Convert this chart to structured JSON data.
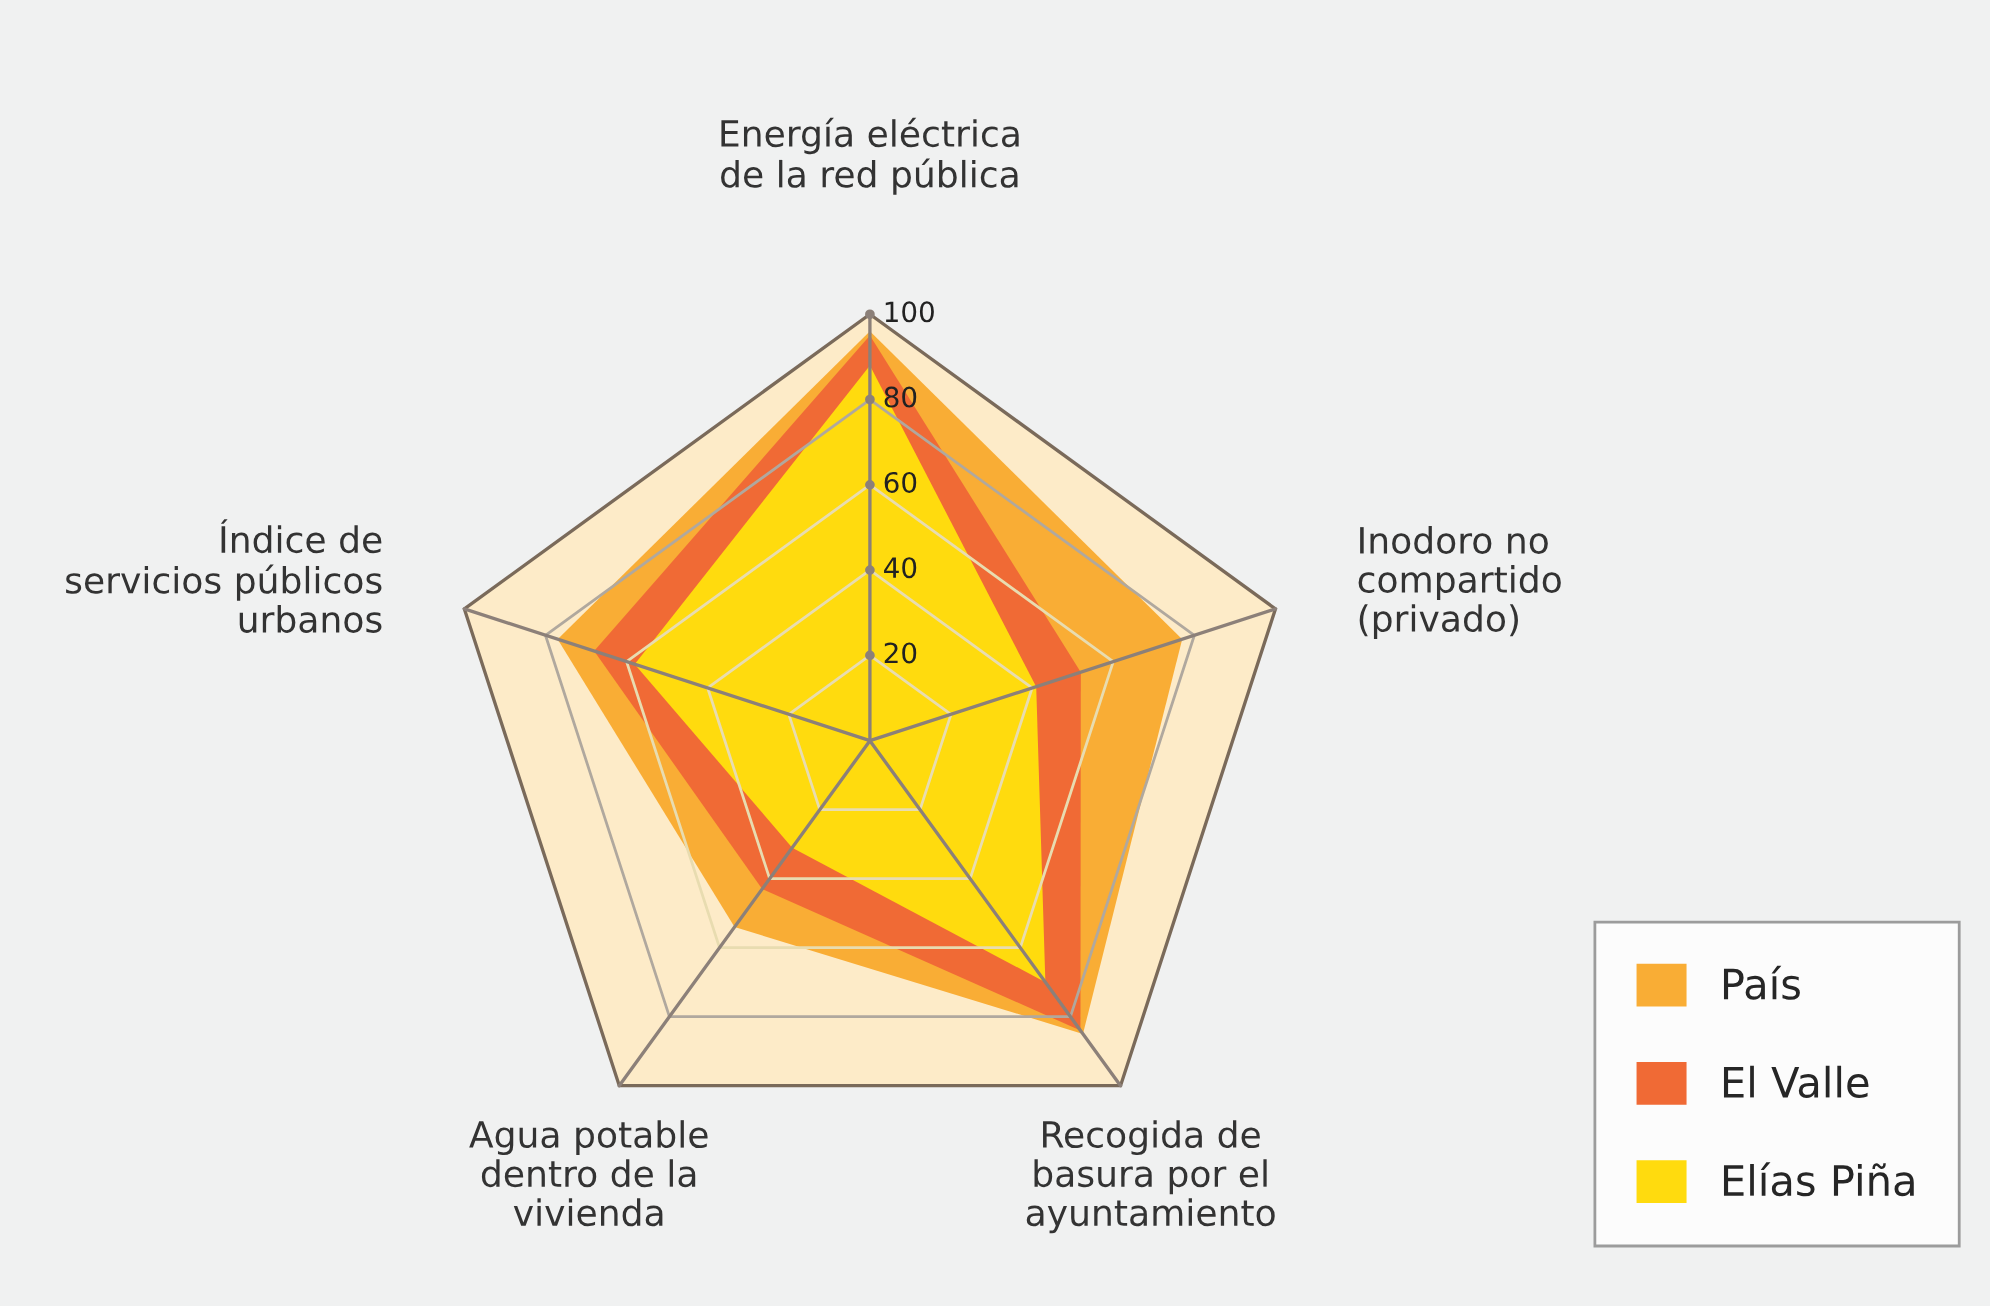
{
  "chart_data": {
    "type": "radar",
    "categories": [
      "Energía eléctrica\nde la red pública",
      "Inodoro no\ncompartido\n(privado)",
      "Recogida de\nbasura por el\nayuntamiento",
      "Agua potable\ndentro de la\nvivienda",
      "Índice de\nservicios públicos\nurbanos"
    ],
    "series": [
      {
        "name": "País",
        "color": "#f9ad35",
        "values": [
          96,
          77,
          85,
          54,
          77
        ]
      },
      {
        "name": "El Valle",
        "color": "#f06a35",
        "values": [
          95,
          52,
          84,
          43,
          68
        ]
      },
      {
        "name": "Elías Piña",
        "color": "#ffdb0e",
        "values": [
          88,
          41,
          70,
          31,
          58
        ]
      }
    ],
    "ylim": [
      0,
      100
    ],
    "yticks": [
      20,
      40,
      60,
      80,
      100
    ],
    "grid": true,
    "legend": "bottom right"
  }
}
